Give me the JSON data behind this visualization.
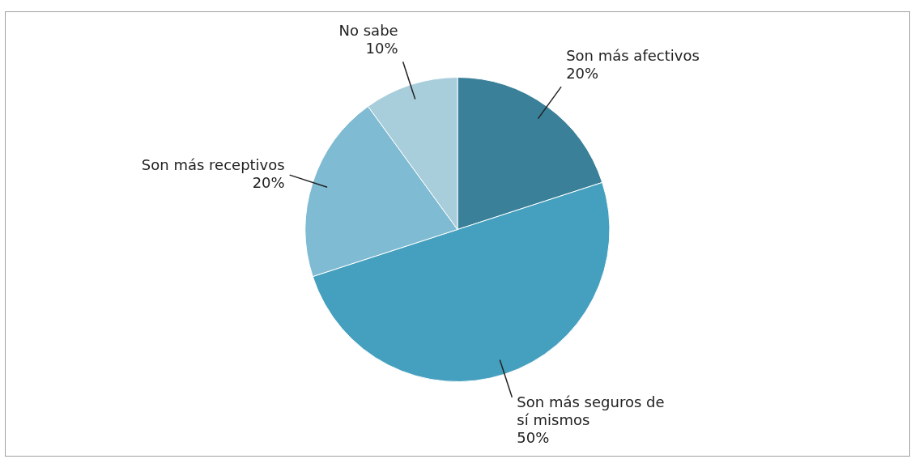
{
  "chart_data": {
    "type": "pie",
    "categories": [
      "Son más afectivos",
      "Son más seguros de sí mismos",
      "Son más receptivos",
      "No sabe"
    ],
    "values": [
      20,
      50,
      20,
      10
    ],
    "value_labels": [
      "20%",
      "50%",
      "20%",
      "10%"
    ],
    "colors": [
      "#3a8099",
      "#45a0bf",
      "#7fbbd3",
      "#a9cedb"
    ],
    "legend": false
  }
}
